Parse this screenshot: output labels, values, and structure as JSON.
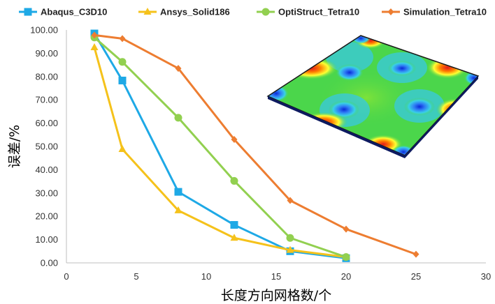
{
  "chart_data": {
    "type": "line",
    "title": "",
    "xlabel": "长度方向网格数/个",
    "ylabel": "误差/%",
    "xlim": [
      0,
      30
    ],
    "ylim": [
      0,
      100
    ],
    "xticks": [
      0,
      5,
      10,
      15,
      20,
      25,
      30
    ],
    "yticks": [
      0,
      10,
      20,
      30,
      40,
      50,
      60,
      70,
      80,
      90,
      100
    ],
    "ytick_format": "2 decimals",
    "grid": false,
    "legend_position": "top",
    "series": [
      {
        "name": "Abaqus_C3D10",
        "color": "#1ea9e6",
        "marker": "square",
        "x": [
          2,
          4,
          8,
          12,
          16,
          20
        ],
        "y": [
          98.5,
          78.3,
          30.5,
          16.3,
          5.0,
          2.0
        ]
      },
      {
        "name": "Ansys_Solid186",
        "color": "#f5c21b",
        "marker": "triangle",
        "x": [
          2,
          4,
          8,
          12,
          16,
          20
        ],
        "y": [
          92.5,
          48.8,
          22.5,
          10.7,
          5.5,
          2.5
        ]
      },
      {
        "name": "OptiStruct_Tetra10",
        "color": "#92d050",
        "marker": "circle",
        "x": [
          2,
          4,
          8,
          12,
          16,
          20
        ],
        "y": [
          96.8,
          86.3,
          62.3,
          35.2,
          10.7,
          2.5
        ]
      },
      {
        "name": "Simulation_Tetra10",
        "color": "#ed7d31",
        "marker": "diamond",
        "x": [
          2,
          4,
          8,
          12,
          16,
          20,
          25
        ],
        "y": [
          97.8,
          96.3,
          83.5,
          53.0,
          26.8,
          14.5,
          3.7
        ]
      }
    ],
    "inset": {
      "type": "contour-plot-image",
      "description_icon": "plate-stress-contour"
    }
  }
}
